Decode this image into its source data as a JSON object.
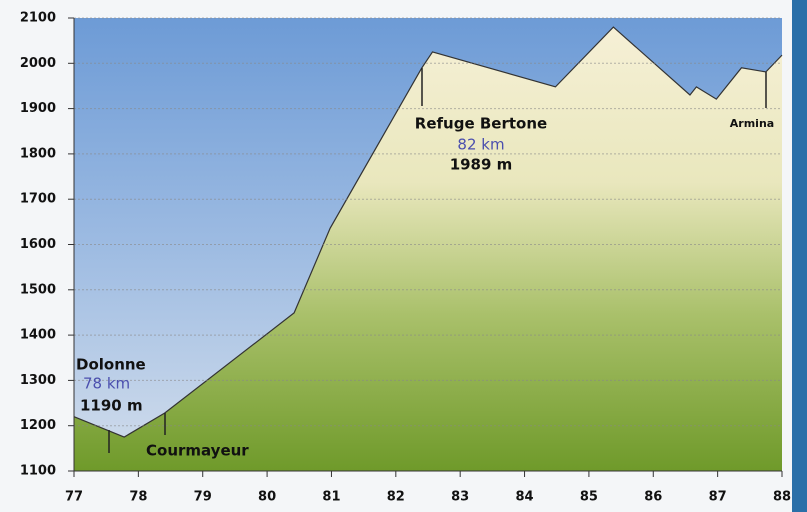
{
  "chart_data": {
    "type": "area",
    "x": [
      77,
      77.78,
      78.41,
      80.42,
      80.98,
      82.4,
      82.57,
      84.48,
      85.38,
      86.57,
      86.67,
      86.98,
      87.37,
      87.75,
      88
    ],
    "values": [
      1220,
      1175,
      1228,
      1449,
      1636,
      1989,
      2025,
      1948,
      2080,
      1930,
      1948,
      1921,
      1990,
      1981,
      2018
    ],
    "color": "#7fa532",
    "xlim": [
      77,
      88
    ],
    "xticks": [
      77,
      78,
      79,
      80,
      81,
      82,
      83,
      84,
      85,
      86,
      87,
      88
    ],
    "ylim": [
      1100,
      2100
    ],
    "yticks": [
      1100,
      1200,
      1300,
      1400,
      1500,
      1600,
      1700,
      1800,
      1900,
      2000,
      2100
    ],
    "grid": true,
    "annotations": [
      "Dolonne",
      "78 km",
      "1190 m",
      "Courmayeur",
      "Refuge Bertone",
      "82 km",
      "1989 m",
      "Armina"
    ]
  }
}
